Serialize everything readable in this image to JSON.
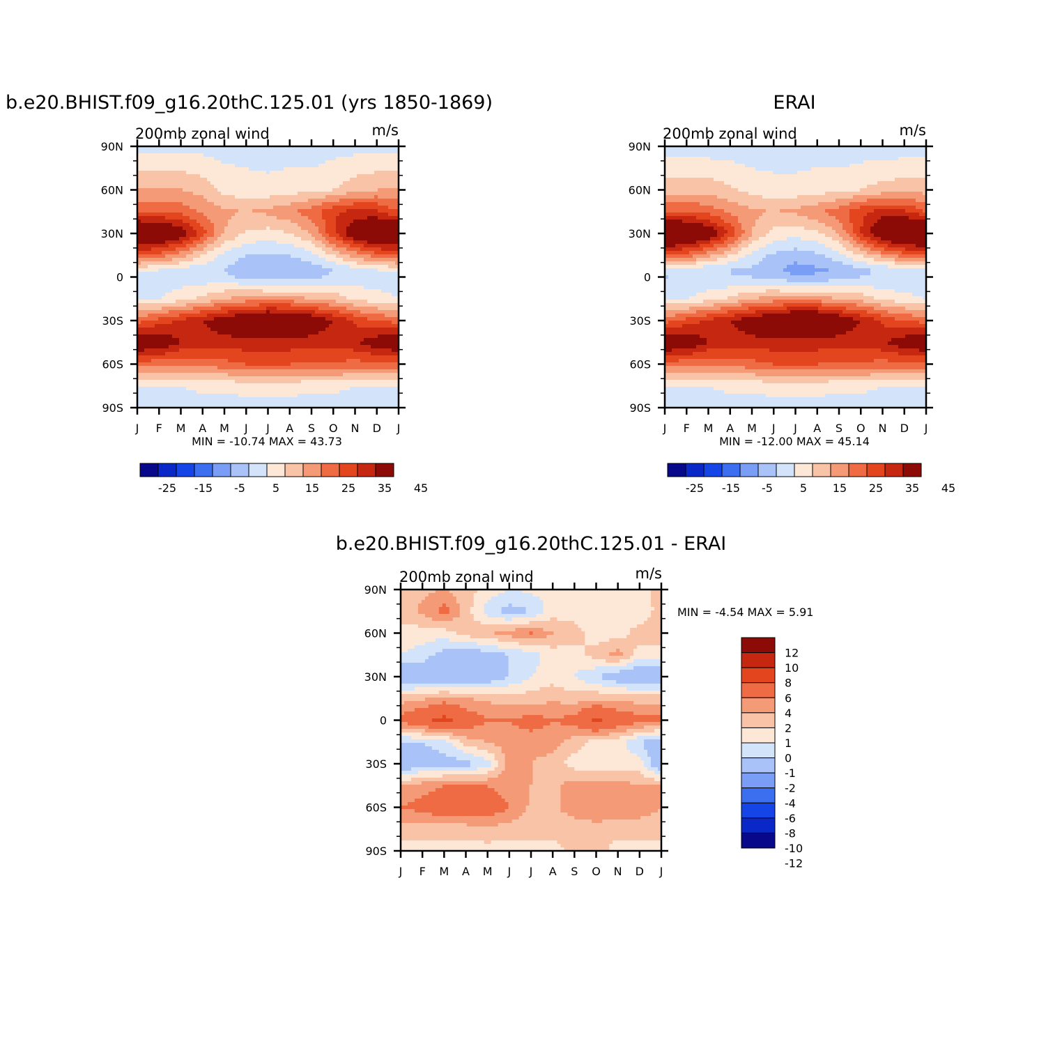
{
  "colors": {
    "main_levels": [
      "#08088a",
      "#0a28c8",
      "#1545e6",
      "#3c6ef0",
      "#7a9ef5",
      "#a9c2f7",
      "#d3e4fa",
      "#fde8d8",
      "#f9c3a7",
      "#f59a76",
      "#ef6b44",
      "#e3461e",
      "#c52710",
      "#8d0b06"
    ],
    "diff_levels": [
      "#08088a",
      "#0a28c8",
      "#1545e6",
      "#3c6ef0",
      "#7a9ef5",
      "#a9c2f7",
      "#d3e4fa",
      "#fde8d8",
      "#f9c3a7",
      "#f59a76",
      "#ef6b44",
      "#e3461e",
      "#c52710",
      "#8d0b06"
    ]
  },
  "panels": [
    {
      "id": "model",
      "title": "b.e20.BHIST.f09_g16.20thC.125.01 (yrs 1850-1869)",
      "subtitle_left": "200mb zonal wind",
      "subtitle_right": "m/s",
      "minmax": "MIN = -10.74 MAX =  43.73",
      "colorbar_labels": [
        "-25",
        "-15",
        "-5",
        "5",
        "15",
        "25",
        "35",
        "45"
      ]
    },
    {
      "id": "erai",
      "title": "ERAI",
      "subtitle_left": "200mb zonal wind",
      "subtitle_right": "m/s",
      "minmax": "MIN = -12.00 MAX =  45.14",
      "colorbar_labels": [
        "-25",
        "-15",
        "-5",
        "5",
        "15",
        "25",
        "35",
        "45"
      ]
    },
    {
      "id": "diff",
      "title": "b.e20.BHIST.f09_g16.20thC.125.01 - ERAI",
      "subtitle_left": "200mb zonal wind",
      "subtitle_right": "m/s",
      "minmax": "MIN =    -4.54 MAX =    5.91",
      "colorbar_labels": [
        "12",
        "10",
        "8",
        "6",
        "4",
        "2",
        "1",
        "0",
        "-1",
        "-2",
        "-4",
        "-6",
        "-8",
        "-10",
        "-12"
      ]
    }
  ],
  "chart_data": [
    {
      "type": "heatmap",
      "panel": "model",
      "title": "b.e20.BHIST.f09_g16.20thC.125.01 (yrs 1850-1869)",
      "xlabel": "",
      "ylabel": "",
      "x_ticks": [
        "J",
        "F",
        "M",
        "A",
        "M",
        "J",
        "J",
        "A",
        "S",
        "O",
        "N",
        "D",
        "J"
      ],
      "y_ticks": [
        "90N",
        "60N",
        "30N",
        "0",
        "30S",
        "60S",
        "90S"
      ],
      "y_tick_values": [
        90,
        60,
        30,
        0,
        -30,
        -60,
        -90
      ],
      "levels": [
        -30,
        -25,
        -20,
        -15,
        -10,
        -5,
        0,
        5,
        10,
        15,
        20,
        25,
        30,
        35,
        40,
        45
      ],
      "units": "m/s",
      "lat": [
        90,
        60,
        45,
        30,
        15,
        5,
        0,
        -15,
        -30,
        -45,
        -60,
        -75,
        -90
      ],
      "months": [
        "Jan",
        "Feb",
        "Mar",
        "Apr",
        "May",
        "Jun",
        "Jul",
        "Aug",
        "Sep",
        "Oct",
        "Nov",
        "Dec",
        "Jan"
      ],
      "values": [
        [
          -2,
          -2,
          -2,
          -2,
          -2,
          -2,
          -3,
          -3,
          -3,
          -2,
          -2,
          -2,
          -2
        ],
        [
          10,
          10,
          10,
          8,
          3,
          2,
          2,
          3,
          3,
          5,
          8,
          10,
          10
        ],
        [
          20,
          20,
          18,
          14,
          11,
          10,
          11,
          14,
          18,
          24,
          27,
          26,
          20
        ],
        [
          43,
          40,
          35,
          22,
          10,
          4,
          3,
          5,
          10,
          24,
          36,
          42,
          43
        ],
        [
          20,
          18,
          12,
          5,
          -2,
          -5,
          -6,
          -5,
          -2,
          5,
          12,
          18,
          20
        ],
        [
          2,
          0,
          -2,
          -3,
          -5,
          -8,
          -10,
          -10,
          -8,
          -5,
          -2,
          0,
          2
        ],
        [
          -3,
          -3,
          -3,
          -3,
          -4,
          -6,
          -8,
          -8,
          -6,
          -4,
          -3,
          -3,
          -3
        ],
        [
          0,
          0,
          3,
          6,
          10,
          12,
          12,
          12,
          10,
          8,
          4,
          2,
          0
        ],
        [
          18,
          22,
          26,
          30,
          34,
          38,
          42,
          41,
          36,
          30,
          24,
          20,
          18
        ],
        [
          38,
          36,
          30,
          28,
          28,
          28,
          28,
          28,
          27,
          27,
          29,
          34,
          38
        ],
        [
          18,
          16,
          16,
          17,
          18,
          20,
          20,
          20,
          19,
          19,
          18,
          18,
          18
        ],
        [
          0,
          0,
          0,
          1,
          1,
          2,
          2,
          2,
          1,
          1,
          0,
          0,
          0
        ],
        [
          -2,
          -2,
          -2,
          -2,
          -2,
          -2,
          -2,
          -2,
          -2,
          -2,
          -2,
          -2,
          -2
        ]
      ]
    },
    {
      "type": "heatmap",
      "panel": "erai",
      "title": "ERAI",
      "xlabel": "",
      "ylabel": "",
      "x_ticks": [
        "J",
        "F",
        "M",
        "A",
        "M",
        "J",
        "J",
        "A",
        "S",
        "O",
        "N",
        "D",
        "J"
      ],
      "y_ticks": [
        "90N",
        "60N",
        "30N",
        "0",
        "30S",
        "60S",
        "90S"
      ],
      "y_tick_values": [
        90,
        60,
        30,
        0,
        -30,
        -60,
        -90
      ],
      "levels": [
        -30,
        -25,
        -20,
        -15,
        -10,
        -5,
        0,
        5,
        10,
        15,
        20,
        25,
        30,
        35,
        40,
        45
      ],
      "units": "m/s",
      "lat": [
        90,
        60,
        45,
        30,
        15,
        5,
        0,
        -15,
        -30,
        -45,
        -60,
        -75,
        -90
      ],
      "months": [
        "Jan",
        "Feb",
        "Mar",
        "Apr",
        "May",
        "Jun",
        "Jul",
        "Aug",
        "Sep",
        "Oct",
        "Nov",
        "Dec",
        "Jan"
      ],
      "values": [
        [
          -3,
          -3,
          -3,
          -3,
          -3,
          -3,
          -3,
          -3,
          -3,
          -3,
          -3,
          -3,
          -3
        ],
        [
          8,
          8,
          8,
          6,
          3,
          2,
          2,
          3,
          3,
          5,
          7,
          8,
          8
        ],
        [
          20,
          20,
          18,
          14,
          11,
          10,
          11,
          14,
          18,
          24,
          27,
          26,
          20
        ],
        [
          45,
          42,
          36,
          24,
          10,
          3,
          2,
          4,
          10,
          25,
          38,
          43,
          45
        ],
        [
          20,
          18,
          12,
          5,
          -2,
          -6,
          -8,
          -6,
          -2,
          5,
          12,
          18,
          20
        ],
        [
          -2,
          -3,
          -4,
          -5,
          -6,
          -9,
          -12,
          -11,
          -9,
          -6,
          -4,
          -3,
          -2
        ],
        [
          -5,
          -5,
          -5,
          -5,
          -5,
          -7,
          -9,
          -9,
          -7,
          -5,
          -5,
          -5,
          -5
        ],
        [
          0,
          0,
          3,
          6,
          10,
          12,
          12,
          12,
          10,
          8,
          4,
          2,
          0
        ],
        [
          18,
          22,
          26,
          30,
          34,
          39,
          43,
          42,
          36,
          30,
          24,
          20,
          18
        ],
        [
          38,
          36,
          30,
          28,
          28,
          28,
          28,
          28,
          27,
          27,
          29,
          34,
          38
        ],
        [
          18,
          16,
          16,
          17,
          18,
          20,
          20,
          20,
          19,
          19,
          18,
          18,
          18
        ],
        [
          0,
          0,
          0,
          1,
          1,
          2,
          2,
          2,
          1,
          1,
          0,
          0,
          0
        ],
        [
          -2,
          -2,
          -2,
          -2,
          -2,
          -2,
          -2,
          -2,
          -2,
          -2,
          -2,
          -2,
          -2
        ]
      ]
    },
    {
      "type": "heatmap",
      "panel": "diff",
      "title": "b.e20.BHIST.f09_g16.20thC.125.01 - ERAI",
      "xlabel": "",
      "ylabel": "",
      "x_ticks": [
        "J",
        "F",
        "M",
        "A",
        "M",
        "J",
        "J",
        "A",
        "S",
        "O",
        "N",
        "D",
        "J"
      ],
      "y_ticks": [
        "90N",
        "60N",
        "30N",
        "0",
        "30S",
        "60S",
        "90S"
      ],
      "y_tick_values": [
        90,
        60,
        30,
        0,
        -30,
        -60,
        -90
      ],
      "levels": [
        -12,
        -10,
        -8,
        -6,
        -4,
        -2,
        -1,
        0,
        1,
        2,
        4,
        6,
        8,
        10,
        12
      ],
      "units": "m/s",
      "lat": [
        90,
        75,
        60,
        45,
        30,
        15,
        0,
        -15,
        -30,
        -45,
        -60,
        -75,
        -90
      ],
      "months": [
        "Jan",
        "Feb",
        "Mar",
        "Apr",
        "May",
        "Jun",
        "Jul",
        "Aug",
        "Sep",
        "Oct",
        "Nov",
        "Dec",
        "Jan"
      ],
      "values": [
        [
          0.5,
          0.8,
          1.0,
          0.5,
          -0.5,
          -1.0,
          -0.8,
          -0.5,
          -0.5,
          -0.5,
          -0.5,
          -0.5,
          0.5
        ],
        [
          0.5,
          1.2,
          2.5,
          0.5,
          -1.5,
          -2.5,
          -2.0,
          -0.5,
          -0.5,
          -0.8,
          -0.5,
          -0.8,
          0.5
        ],
        [
          -0.5,
          -0.5,
          -0.5,
          0.5,
          0.8,
          1.5,
          2.0,
          1.0,
          0.5,
          -0.5,
          -0.5,
          0.5,
          0.5
        ],
        [
          -1.0,
          -1.5,
          -2.5,
          -3.0,
          -2.5,
          -2.0,
          -1.5,
          -0.5,
          -0.5,
          0.5,
          1.5,
          -0.5,
          -0.5
        ],
        [
          -3.5,
          -3.0,
          -3.5,
          -3.5,
          -3.0,
          -2.0,
          -1.0,
          -0.5,
          -1.0,
          -2.0,
          -3.0,
          -3.5,
          -3.5
        ],
        [
          0.5,
          0.8,
          1.5,
          1.0,
          0.8,
          0.5,
          0.5,
          0.8,
          0.5,
          0.8,
          0.8,
          0.5,
          0.5
        ],
        [
          2.5,
          3.5,
          4.5,
          3.0,
          2.0,
          2.0,
          2.5,
          2.0,
          2.5,
          4.5,
          3.0,
          2.5,
          2.5
        ],
        [
          -2.0,
          -2.0,
          -1.5,
          0.5,
          1.0,
          1.5,
          1.5,
          1.5,
          0.5,
          -0.5,
          -0.5,
          -2.0,
          -3.0
        ],
        [
          -3.5,
          -2.5,
          -2.5,
          -2.5,
          -1.5,
          1.5,
          1.0,
          0.5,
          -0.5,
          -0.8,
          -0.5,
          -0.5,
          -3.5
        ],
        [
          1.0,
          1.5,
          2.0,
          2.0,
          2.0,
          1.5,
          1.0,
          0.8,
          1.5,
          1.5,
          1.5,
          1.0,
          1.0
        ],
        [
          2.0,
          2.5,
          3.0,
          3.0,
          3.0,
          2.0,
          0.8,
          0.8,
          1.5,
          2.0,
          1.5,
          1.5,
          1.0
        ],
        [
          0.5,
          0.5,
          0.5,
          0.5,
          0.8,
          0.5,
          0.5,
          0.5,
          0.5,
          0.5,
          0.5,
          0.5,
          0.5
        ],
        [
          -0.5,
          -0.5,
          -0.5,
          -0.5,
          -0.5,
          -0.5,
          -0.5,
          -0.5,
          0.5,
          0.5,
          -0.5,
          -0.5,
          -0.5
        ]
      ]
    }
  ]
}
